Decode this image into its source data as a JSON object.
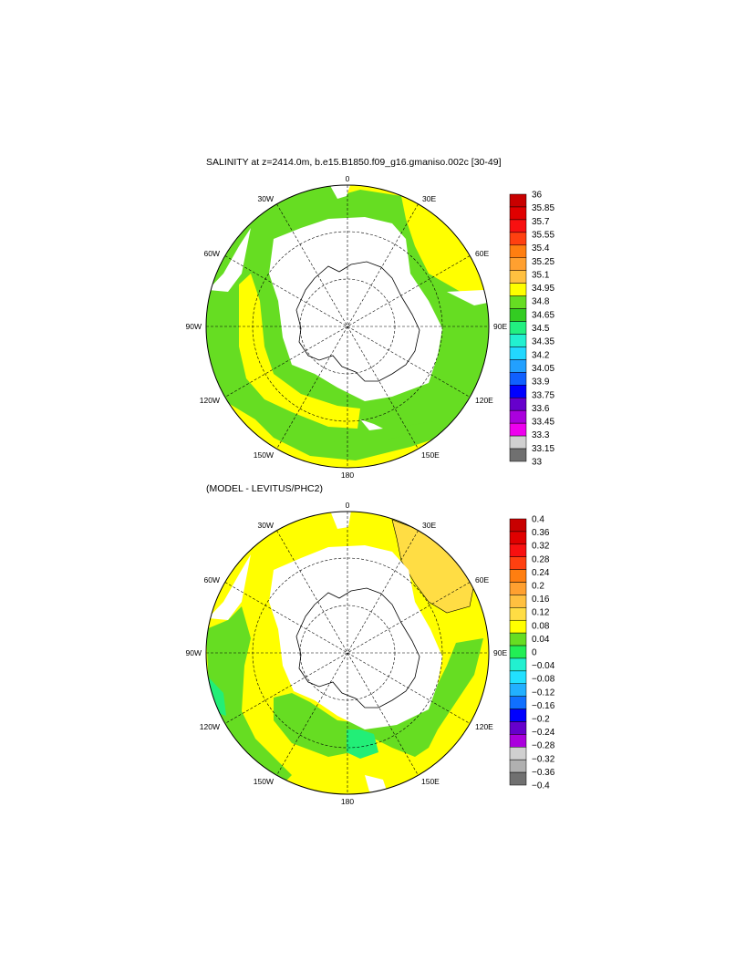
{
  "panel_top": {
    "title": "SALINITY at z=2414.0m, b.e15.B1850.f09_g16.gmaniso.002c [30-49]",
    "lon_labels": [
      "0",
      "30E",
      "60E",
      "90E",
      "120E",
      "150E",
      "180",
      "150W",
      "120W",
      "90W",
      "60W",
      "30W"
    ],
    "colorbar": {
      "labels": [
        "36",
        "35.85",
        "35.7",
        "35.55",
        "35.4",
        "35.25",
        "35.1",
        "34.95",
        "34.8",
        "34.65",
        "34.5",
        "34.35",
        "34.2",
        "34.05",
        "33.9",
        "33.75",
        "33.6",
        "33.45",
        "33.3",
        "33.15",
        "33"
      ],
      "colors": [
        "#c80000",
        "#e00000",
        "#f81010",
        "#ff4010",
        "#ff7e10",
        "#ffa030",
        "#ffc040",
        "#ffff00",
        "#66dd22",
        "#33cc22",
        "#22f080",
        "#22f0d0",
        "#22d8ff",
        "#22a0ff",
        "#1060ff",
        "#0000ff",
        "#6600cc",
        "#aa00dd",
        "#ee00ee",
        "#d0d0d0",
        "#707070"
      ]
    }
  },
  "panel_bottom": {
    "title": "(MODEL - LEVITUS/PHC2)",
    "lon_labels": [
      "0",
      "30E",
      "60E",
      "90E",
      "120E",
      "150E",
      "180",
      "150W",
      "120W",
      "90W",
      "60W",
      "30W"
    ],
    "colorbar": {
      "labels": [
        "0.4",
        "0.36",
        "0.32",
        "0.28",
        "0.24",
        "0.2",
        "0.16",
        "0.12",
        "0.08",
        "0.04",
        "0",
        "−0.04",
        "−0.08",
        "−0.12",
        "−0.16",
        "−0.2",
        "−0.24",
        "−0.28",
        "−0.32",
        "−0.36",
        "−0.4"
      ],
      "colors": [
        "#c80000",
        "#e00000",
        "#f81010",
        "#ff4010",
        "#ff7e10",
        "#ffa030",
        "#ffc040",
        "#ffdd44",
        "#ffff00",
        "#66dd22",
        "#22ee55",
        "#22f0d0",
        "#22e0ff",
        "#22b0ff",
        "#1070ff",
        "#0000ff",
        "#6600cc",
        "#aa00dd",
        "#d0d0d0",
        "#b0b0b0",
        "#707070"
      ]
    }
  },
  "colors": {
    "ocean_main": "#66dd22",
    "ocean_yellow": "#ffff00",
    "land": "#ffffff",
    "orange_patch": "#ffdd44",
    "teal_patch": "#22ee77"
  }
}
